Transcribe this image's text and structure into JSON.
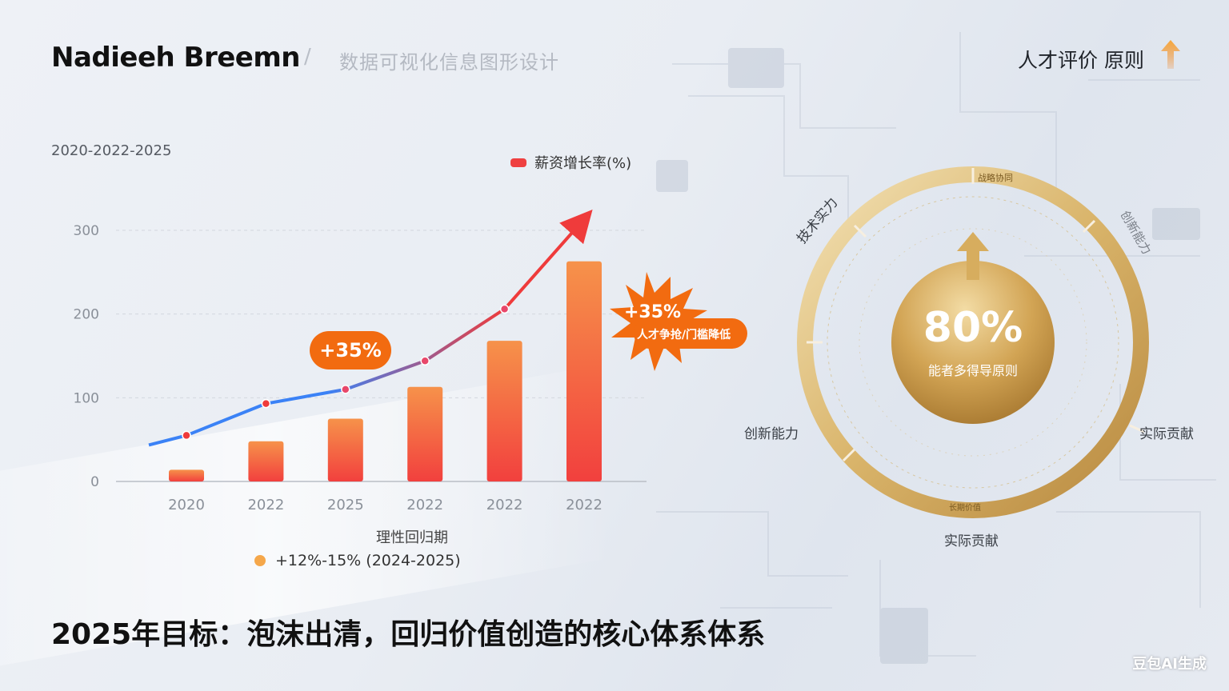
{
  "header": {
    "brand": "Nadieeh Breemn",
    "separator": "/",
    "subtitle": "数据可视化信息图形设计",
    "right_title": "人才评价 原则"
  },
  "chart_range_label": "2020-2022-2025",
  "chart_data": {
    "type": "bar",
    "categories": [
      "2020",
      "2022",
      "2025",
      "2022",
      "2022",
      "2022"
    ],
    "values": [
      14,
      48,
      75,
      113,
      168,
      263
    ],
    "line_values": [
      55,
      93,
      110,
      144,
      206
    ],
    "ylim": [
      0,
      300
    ],
    "yticks": [
      "0",
      "100",
      "200",
      "300"
    ],
    "xlabel": "理性回归期",
    "legend": "薪资增长率(%)",
    "bar_color_top": "#f6924a",
    "bar_color_bottom": "#f2403e",
    "line_color_start": "#3b82f6",
    "line_color_end": "#ef3b3b"
  },
  "annotations": {
    "pill": "+35%",
    "burst_big": "+35%",
    "burst_small": "人才争抢/门槛降低",
    "note": "+12%-15% (2024-2025)"
  },
  "ring": {
    "value": "80%",
    "value_sub": "能者多得导原则",
    "labels": {
      "top": "战略协同",
      "top_left": "技术实力",
      "top_right": "创新能力",
      "left": "创新能力",
      "right": "实际贡献",
      "bottom": "实际贡献",
      "bottom_arc": "长期价值"
    },
    "gold": "#d4a34e"
  },
  "goal": "2025年目标：泡沫出清，回归价值创造的核心体系体系",
  "watermark": "豆包AI生成"
}
